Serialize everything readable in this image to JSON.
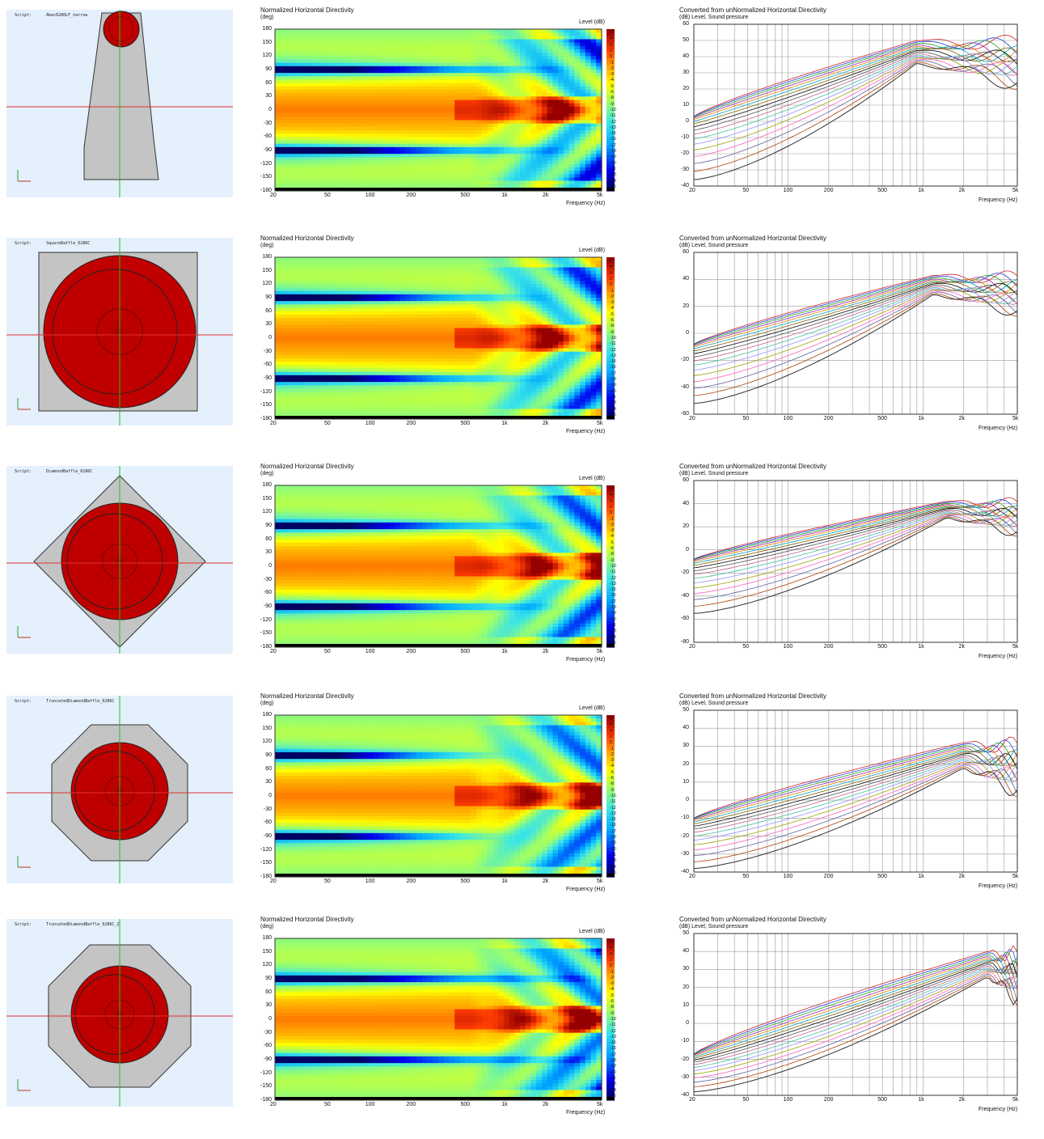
{
  "colors": {
    "model_bg": "#e4f0fc",
    "baffle_gray": "#c4c4c4",
    "driver_red": "#c00000",
    "axis_red": "#e03030",
    "axis_green": "#20c020"
  },
  "contour_common": {
    "title": "Normalized Horizontal Directivity",
    "ylabel": "(deg)",
    "level_label": "Level  (dB)",
    "xlabel": "Frequency  (Hz)",
    "yticks": [
      "180",
      "150",
      "120",
      "90",
      "60",
      "30",
      "0",
      "-30",
      "-60",
      "-90",
      "-120",
      "-150",
      "-180"
    ],
    "xticks": [
      "20",
      "50",
      "100",
      "200",
      "500",
      "1k",
      "2k",
      "5k"
    ],
    "colorbar_labels": [
      "5",
      "4",
      "3",
      "2",
      "0",
      "-1",
      "-2",
      "-3",
      "-4",
      "-5",
      "-6",
      "-8",
      "-9",
      "-10",
      "-11",
      "-12",
      "-13",
      "-15",
      "-16",
      "-17",
      "-18",
      "-19",
      "-20",
      "-21",
      "-23",
      "-24",
      "-25"
    ]
  },
  "response_common": {
    "title": "Converted from unNormalized Horizontal Directivity",
    "ylabel": "(dB)  Level, Sound pressure",
    "xlabel": "Frequency  (Hz)",
    "xticks": [
      "20",
      "50",
      "100",
      "200",
      "500",
      "1k",
      "2k",
      "5k"
    ]
  },
  "rows": [
    {
      "model": {
        "label": "Script:",
        "name": "Abec6286LF_narrow",
        "shape": "tapered"
      },
      "chart_data": [
        {
          "type": "heatmap",
          "title": "Normalized Horizontal Directivity",
          "x_range_hz": [
            20,
            5000
          ],
          "y_range_deg": [
            -180,
            180
          ],
          "null_angles": [
            90,
            -90
          ]
        },
        {
          "type": "line",
          "title": "Converted from unNormalized Horizontal Directivity",
          "ylim": [
            -40,
            60
          ],
          "yticks": [
            "60",
            "50",
            "40",
            "30",
            "20",
            "10",
            "0",
            "-10",
            "-20",
            "-30",
            "-40"
          ],
          "peak_hz": 900,
          "peak_db": 50,
          "start_top_db": 3,
          "start_bottom_db": -36
        }
      ]
    },
    {
      "model": {
        "label": "Script:",
        "name": "SquareBaffle_6286C",
        "shape": "square"
      },
      "chart_data": [
        {
          "type": "heatmap",
          "title": "Normalized Horizontal Directivity",
          "x_range_hz": [
            20,
            5000
          ],
          "y_range_deg": [
            -180,
            180
          ],
          "null_angles": [
            90,
            -90
          ]
        },
        {
          "type": "line",
          "title": "Converted from unNormalized Horizontal Directivity",
          "ylim": [
            -60,
            60
          ],
          "yticks": [
            "60",
            "40",
            "20",
            "0",
            "-20",
            "-40",
            "-60"
          ],
          "peak_hz": 1200,
          "peak_db": 43,
          "start_top_db": -8,
          "start_bottom_db": -52
        }
      ]
    },
    {
      "model": {
        "label": "Script:",
        "name": "DiamondBaffle_6286C",
        "shape": "diamond"
      },
      "chart_data": [
        {
          "type": "heatmap",
          "title": "Normalized Horizontal Directivity",
          "x_range_hz": [
            20,
            5000
          ],
          "y_range_deg": [
            -180,
            180
          ],
          "null_angles": [
            90,
            -90
          ]
        },
        {
          "type": "line",
          "title": "Converted from unNormalized Horizontal Directivity",
          "ylim": [
            -80,
            60
          ],
          "yticks": [
            "60",
            "40",
            "20",
            "0",
            "-20",
            "-40",
            "-60",
            "-80"
          ],
          "peak_hz": 1500,
          "peak_db": 42,
          "start_top_db": -8,
          "start_bottom_db": -55
        }
      ]
    },
    {
      "model": {
        "label": "Script:",
        "name": "TruncatedDiamondBaffle_6286C",
        "shape": "octagon"
      },
      "chart_data": [
        {
          "type": "heatmap",
          "title": "Normalized Horizontal Directivity",
          "x_range_hz": [
            20,
            5000
          ],
          "y_range_deg": [
            -180,
            180
          ],
          "null_angles": [
            90,
            -90
          ]
        },
        {
          "type": "line",
          "title": "Converted from unNormalized Horizontal Directivity",
          "ylim": [
            -40,
            50
          ],
          "yticks": [
            "50",
            "40",
            "30",
            "20",
            "10",
            "0",
            "-10",
            "-20",
            "-30",
            "-40"
          ],
          "peak_hz": 2000,
          "peak_db": 32,
          "start_top_db": -10,
          "start_bottom_db": -38
        }
      ]
    },
    {
      "model": {
        "label": "Script:",
        "name": "TruncatedDiamondBaffle_6286C_2",
        "shape": "octagon2"
      },
      "chart_data": [
        {
          "type": "heatmap",
          "title": "Normalized Horizontal Directivity",
          "x_range_hz": [
            20,
            5000
          ],
          "y_range_deg": [
            -180,
            180
          ],
          "null_angles": [
            90,
            -90
          ]
        },
        {
          "type": "line",
          "title": "Converted from unNormalized Horizontal Directivity",
          "ylim": [
            -40,
            50
          ],
          "yticks": [
            "50",
            "40",
            "30",
            "20",
            "10",
            "0",
            "-10",
            "-20",
            "-30",
            "-40"
          ],
          "peak_hz": 3000,
          "peak_db": 40,
          "start_top_db": -17,
          "start_bottom_db": -38
        }
      ]
    }
  ]
}
